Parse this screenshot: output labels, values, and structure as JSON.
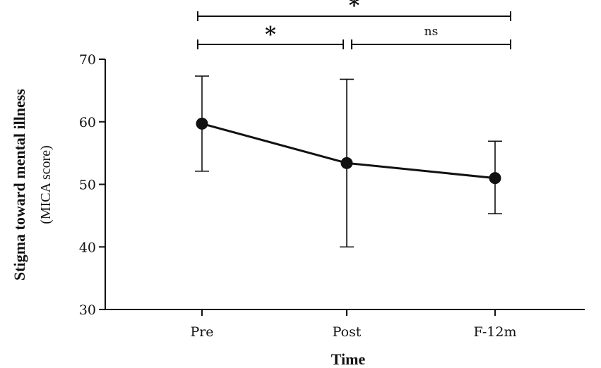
{
  "chart_data": {
    "type": "line",
    "categories": [
      "Pre",
      "Post",
      "F-12m"
    ],
    "series": [
      {
        "values": [
          59.7,
          53.4,
          51.0
        ],
        "error_low": [
          52.1,
          40.0,
          45.3
        ],
        "error_high": [
          67.3,
          66.8,
          56.9
        ]
      }
    ],
    "ylabel_line1": "Stigma toward mental illness",
    "ylabel_line2": "(MICA score)",
    "xlabel": "Time",
    "ylim": [
      30,
      70
    ],
    "yticks": [
      30,
      40,
      50,
      60,
      70
    ],
    "grid": false,
    "annotations": [
      {
        "from": "Pre",
        "to": "F-12m",
        "text": "*"
      },
      {
        "from": "Pre",
        "to": "Post",
        "text": "*"
      },
      {
        "from": "Post",
        "to": "F-12m",
        "text": "ns"
      }
    ],
    "colors": {
      "line": "#111111",
      "marker": "#111111"
    }
  }
}
